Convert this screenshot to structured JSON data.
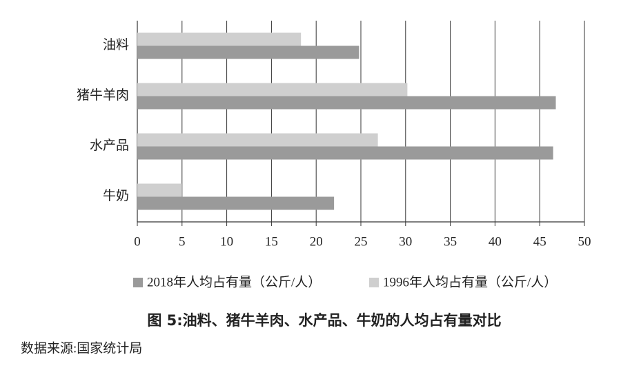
{
  "chart_data": {
    "type": "bar",
    "orientation": "horizontal",
    "title": "图 5:油料、猪牛羊肉、水产品、牛奶的人均占有量对比",
    "source": "数据来源:国家统计局",
    "categories": [
      "油料",
      "猪牛羊肉",
      "水产品",
      "牛奶"
    ],
    "series": [
      {
        "name": "2018年人均占有量（公斤/人）",
        "color": "#9a9a9a",
        "values": [
          24.8,
          46.8,
          46.5,
          22.0
        ]
      },
      {
        "name": "1996年人均占有量（公斤/人）",
        "color": "#cfcfcf",
        "values": [
          18.3,
          30.2,
          26.9,
          5.0
        ]
      }
    ],
    "xlim": [
      0,
      50
    ],
    "xticks": [
      0,
      5,
      10,
      15,
      20,
      25,
      30,
      35,
      40,
      45,
      50
    ],
    "grid": true
  }
}
